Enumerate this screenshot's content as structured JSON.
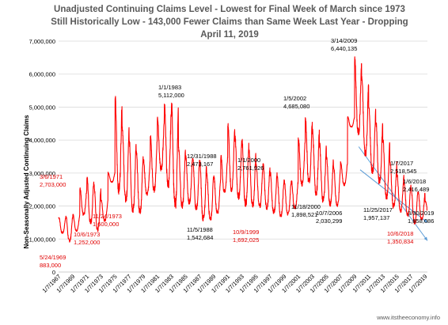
{
  "chart_data": {
    "type": "line",
    "title_lines": [
      "Unadjusted Continuing Claims Level - Lowest for Final Week of March since 1973",
      "Still Historically Low - 143,000 Fewer Claims than Same Week Last Year - Dropping",
      "April 11, 2019"
    ],
    "ylabel": "Non-Seasonally Adjusted Continuing Claims",
    "xlabel": "",
    "ylim": [
      0,
      7000000
    ],
    "yticks": [
      {
        "value": 1000000,
        "label": "1,000,000"
      },
      {
        "value": 2000000,
        "label": "2,000,000"
      },
      {
        "value": 3000000,
        "label": "3,000,000"
      },
      {
        "value": 4000000,
        "label": "4,000,000"
      },
      {
        "value": 5000000,
        "label": "5,000,000"
      },
      {
        "value": 6000000,
        "label": "6,000,000"
      },
      {
        "value": 7000000,
        "label": "7,000,000"
      }
    ],
    "y_zero_label": "0",
    "xlim": [
      1967.0,
      2019.35
    ],
    "xtick_labels": [
      "1/7/1967",
      "1/7/1969",
      "1/7/1971",
      "1/7/1973",
      "1/7/1975",
      "1/7/1977",
      "1/7/1979",
      "1/7/1981",
      "1/7/1983",
      "1/7/1985",
      "1/7/1987",
      "1/7/1989",
      "1/7/1991",
      "1/7/1993",
      "1/7/1995",
      "1/7/1997",
      "1/7/1999",
      "1/7/2001",
      "1/7/2003",
      "1/7/2005",
      "1/7/2007",
      "1/7/2009",
      "1/7/2011",
      "1/7/2013",
      "1/7/2015",
      "1/7/2017",
      "1/7/2019"
    ],
    "grid": true,
    "legend": "none",
    "series": [
      {
        "color": "#ff0000",
        "envelope": [
          [
            1967.0,
            1350000,
            1650000
          ],
          [
            1968.0,
            1150000,
            1700000
          ],
          [
            1969.0,
            900000,
            1700000
          ],
          [
            1970.0,
            1350000,
            2500000
          ],
          [
            1971.0,
            1850000,
            2850000
          ],
          [
            1972.0,
            1450000,
            2600000
          ],
          [
            1973.0,
            1250000,
            2150000
          ],
          [
            1974.0,
            1650000,
            2900000
          ],
          [
            1975.0,
            3000000,
            5250000
          ],
          [
            1976.0,
            2400000,
            4400000
          ],
          [
            1977.0,
            2150000,
            3950000
          ],
          [
            1978.0,
            1850000,
            3600000
          ],
          [
            1979.0,
            1850000,
            3350000
          ],
          [
            1980.0,
            2500000,
            4050000
          ],
          [
            1981.0,
            2500000,
            4650000
          ],
          [
            1982.0,
            3300000,
            5000000
          ],
          [
            1983.0,
            2500000,
            5100000
          ],
          [
            1984.0,
            1950000,
            3750000
          ],
          [
            1985.0,
            2050000,
            3500000
          ],
          [
            1986.0,
            2150000,
            3400000
          ],
          [
            1987.0,
            1900000,
            3350000
          ],
          [
            1988.0,
            1550000,
            2950000
          ],
          [
            1989.0,
            1650000,
            2850000
          ],
          [
            1990.0,
            1850000,
            3450000
          ],
          [
            1991.0,
            2600000,
            4500000
          ],
          [
            1992.0,
            2500000,
            4050000
          ],
          [
            1993.0,
            2250000,
            3950000
          ],
          [
            1994.0,
            2050000,
            3650000
          ],
          [
            1995.0,
            2050000,
            3250000
          ],
          [
            1996.0,
            2000000,
            3250000
          ],
          [
            1997.0,
            1950000,
            3000000
          ],
          [
            1998.0,
            1800000,
            2850000
          ],
          [
            1999.0,
            1700000,
            2750000
          ],
          [
            2000.0,
            1780000,
            2700000
          ],
          [
            2001.0,
            2000000,
            4000000
          ],
          [
            2002.0,
            2850000,
            4650000
          ],
          [
            2003.0,
            2700000,
            4300000
          ],
          [
            2004.0,
            2350000,
            3900000
          ],
          [
            2005.0,
            2150000,
            3450000
          ],
          [
            2006.0,
            2050000,
            3150000
          ],
          [
            2007.0,
            2030000,
            3250000
          ],
          [
            2008.0,
            2800000,
            4600000
          ],
          [
            2009.0,
            4800000,
            6450000
          ],
          [
            2010.0,
            4100000,
            5900000
          ],
          [
            2011.0,
            3500000,
            4950000
          ],
          [
            2012.0,
            2950000,
            4600000
          ],
          [
            2013.0,
            2700000,
            4000000
          ],
          [
            2014.0,
            2200000,
            3350000
          ],
          [
            2015.0,
            1950000,
            2950000
          ],
          [
            2016.0,
            1850000,
            2700000
          ],
          [
            2017.0,
            1700000,
            2520000
          ],
          [
            2018.0,
            1450000,
            2420000
          ],
          [
            2019.0,
            1650000,
            2200000
          ],
          [
            2019.28,
            1860000,
            1860000
          ]
        ]
      }
    ],
    "annotations": [
      {
        "date": "5/24/1969",
        "value": "883,000",
        "x": 1969.4,
        "y": 883000,
        "color": "red"
      },
      {
        "date": "3/6/1971",
        "value": "2,703,000",
        "x": 1971.18,
        "y": 2703000,
        "color": "red"
      },
      {
        "date": "10/6/1973",
        "value": "1,252,000",
        "x": 1973.77,
        "y": 1252000,
        "color": "red"
      },
      {
        "date": "11/24/1973",
        "value": "1,600,000",
        "x": 1973.9,
        "y": 1600000,
        "color": "red"
      },
      {
        "date": "1/1/1983",
        "value": "5,112,000",
        "x": 1983.0,
        "y": 5112000,
        "color": "black"
      },
      {
        "date": "12/31/1988",
        "value": "2,473,167",
        "x": 1988.99,
        "y": 2473167,
        "color": "black"
      },
      {
        "date": "11/5/1988",
        "value": "1,542,684",
        "x": 1988.85,
        "y": 1542684,
        "color": "black"
      },
      {
        "date": "1/1/2000",
        "value": "2,761,926",
        "x": 2000.0,
        "y": 2761926,
        "color": "black"
      },
      {
        "date": "10/9/1999",
        "value": "1,692,025",
        "x": 1999.77,
        "y": 1692025,
        "color": "red"
      },
      {
        "date": "1/5/2002",
        "value": "4,685,080",
        "x": 2002.01,
        "y": 4685080,
        "color": "black"
      },
      {
        "date": "11/18/2000",
        "value": "1,898,521",
        "x": 2000.88,
        "y": 1898521,
        "color": "black"
      },
      {
        "date": "10/7/2006",
        "value": "2,030,299",
        "x": 2006.77,
        "y": 2030299,
        "color": "black"
      },
      {
        "date": "3/14/2009",
        "value": "6,440,135",
        "x": 2009.2,
        "y": 6440135,
        "color": "black"
      },
      {
        "date": "11/25/2017",
        "value": "1,957,137",
        "x": 2017.9,
        "y": 1957137,
        "color": "black"
      },
      {
        "date": "1/7/2017",
        "value": "2,518,545",
        "x": 2017.02,
        "y": 2518545,
        "color": "black"
      },
      {
        "date": "1/6/2018",
        "value": "2,416,489",
        "x": 2018.01,
        "y": 2416489,
        "color": "black"
      },
      {
        "date": "10/6/2018",
        "value": "1,350,834",
        "x": 2018.77,
        "y": 1350834,
        "color": "red"
      },
      {
        "date": "3/30/2019",
        "value": "1,858,086",
        "x": 2019.24,
        "y": 1858086,
        "color": "black"
      }
    ],
    "trendlines": [
      {
        "color": "#5b9bd5",
        "from": [
          2009.8,
          3100000
        ],
        "to": [
          2019.35,
          1500000
        ]
      },
      {
        "color": "#5b9bd5",
        "from": [
          2009.6,
          3800000
        ],
        "to": [
          2019.35,
          950000
        ]
      }
    ]
  },
  "source": "www.itstheeconomy.info",
  "colors": {
    "series": "#ff0000",
    "annotation_red": "#e00000",
    "annotation_black": "#000000",
    "trend": "#5b9bd5",
    "title": "#595959"
  }
}
